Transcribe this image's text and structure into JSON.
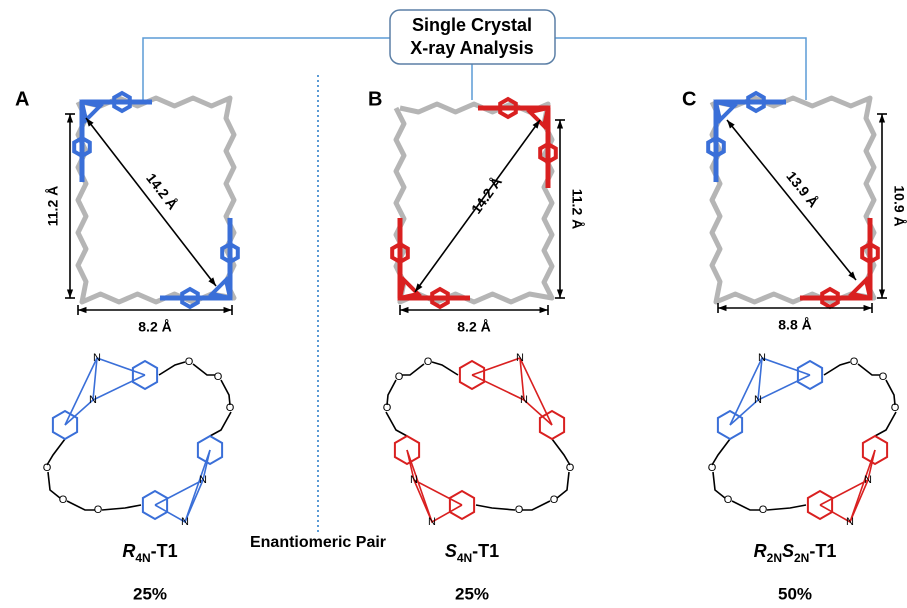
{
  "header": {
    "title_line1": "Single Crystal",
    "title_line2": "X-ray Analysis"
  },
  "panels": [
    {
      "letter": "A",
      "height": "11.2 Å",
      "diagonal": "14.2 Å",
      "width": "8.2 Å",
      "compound": [
        {
          "text": "R",
          "italic": true
        },
        {
          "text": "4N",
          "sub": true
        },
        {
          "text": "-T1"
        }
      ],
      "percentage": "25%"
    },
    {
      "letter": "B",
      "height": "11.2 Å",
      "diagonal": "14.2 Å",
      "width": "8.2 Å",
      "compound": [
        {
          "text": "S",
          "italic": true
        },
        {
          "text": "4N",
          "sub": true
        },
        {
          "text": "-T1"
        }
      ],
      "percentage": "25%"
    },
    {
      "letter": "C",
      "height": "10.9 Å",
      "diagonal": "13.9 Å",
      "width": "8.8 Å",
      "compound": [
        {
          "text": "R",
          "italic": true
        },
        {
          "text": "2N",
          "sub": true
        },
        {
          "text": "S",
          "italic": true
        },
        {
          "text": "2N",
          "sub": true
        },
        {
          "text": "-T1"
        }
      ],
      "percentage": "50%"
    }
  ],
  "annotation": "Enantiomeric Pair",
  "atoms": {
    "oxygen": "O",
    "nitrogen": "N"
  }
}
